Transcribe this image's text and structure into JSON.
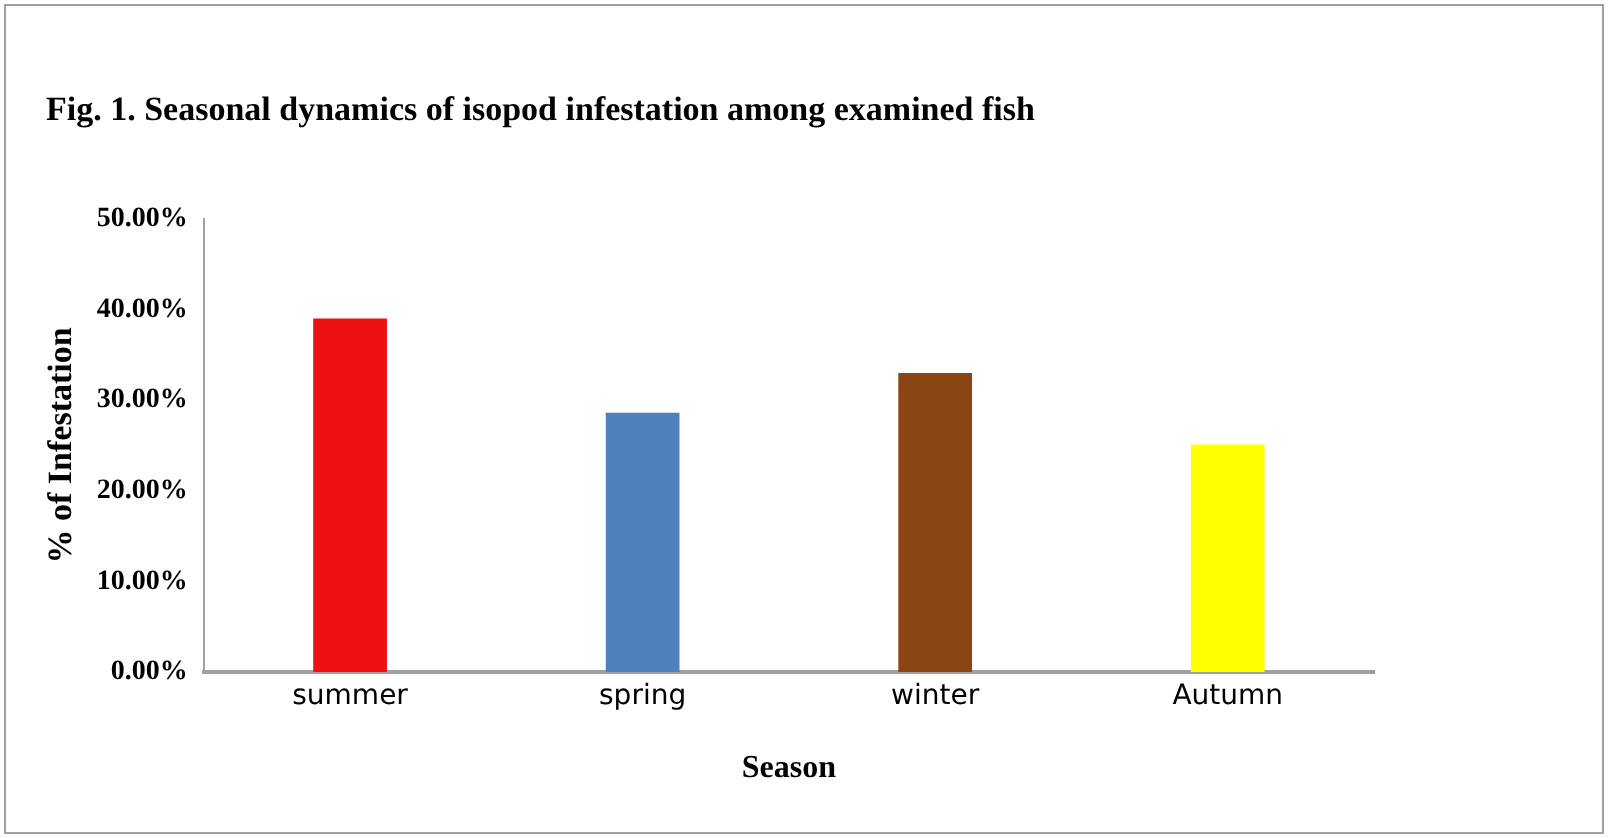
{
  "chart_data": {
    "type": "bar",
    "title": "Fig. 1. Seasonal dynamics of isopod infestation among examined fish",
    "xlabel": "Season",
    "ylabel": "% of Infestation",
    "categories": [
      "summer",
      "spring",
      "winter",
      "Autumn"
    ],
    "values": [
      39.0,
      28.6,
      33.0,
      25.1
    ],
    "colors": [
      "#ee1111",
      "#4f81bd",
      "#8b4513",
      "#ffff00"
    ],
    "ylim": [
      0,
      50
    ],
    "yticks": [
      {
        "value": 0,
        "label": "0.00%"
      },
      {
        "value": 10,
        "label": "10.00%"
      },
      {
        "value": 20,
        "label": "20.00%"
      },
      {
        "value": 30,
        "label": "30.00%"
      },
      {
        "value": 40,
        "label": "40.00%"
      },
      {
        "value": 50,
        "label": "50.00%"
      }
    ],
    "grid": false,
    "legend": false
  }
}
